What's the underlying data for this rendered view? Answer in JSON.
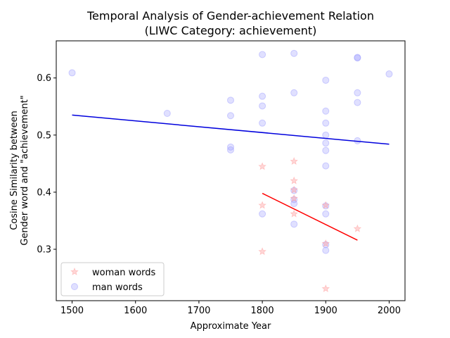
{
  "chart_data": {
    "type": "scatter",
    "title_line1": "Temporal Analysis of Gender-achievement Relation",
    "title_line2": "(LIWC Category: achievement)",
    "xlabel": "Approximate Year",
    "ylabel_line1": "Cosine Similarity between",
    "ylabel_line2": "Gender word and \"achievement\"",
    "xlim": [
      1475,
      2025
    ],
    "ylim": [
      0.21,
      0.665
    ],
    "xticks": [
      1500,
      1600,
      1700,
      1800,
      1900,
      2000
    ],
    "yticks": [
      0.3,
      0.4,
      0.5,
      0.6
    ],
    "grid": false,
    "legend_position": "lower-left",
    "series": [
      {
        "name": "woman words",
        "marker": "star",
        "color": "#ff9999",
        "points": [
          {
            "x": 1800,
            "y": 0.445
          },
          {
            "x": 1800,
            "y": 0.377
          },
          {
            "x": 1800,
            "y": 0.296
          },
          {
            "x": 1850,
            "y": 0.454
          },
          {
            "x": 1850,
            "y": 0.42
          },
          {
            "x": 1850,
            "y": 0.404
          },
          {
            "x": 1850,
            "y": 0.389
          },
          {
            "x": 1850,
            "y": 0.362
          },
          {
            "x": 1900,
            "y": 0.377
          },
          {
            "x": 1900,
            "y": 0.31
          },
          {
            "x": 1900,
            "y": 0.231
          },
          {
            "x": 1950,
            "y": 0.336
          }
        ],
        "trend": {
          "color": "#ff0000",
          "x": [
            1800,
            1950
          ],
          "y": [
            0.398,
            0.316
          ]
        }
      },
      {
        "name": "man words",
        "marker": "circle",
        "color": "#9999ff",
        "points": [
          {
            "x": 1500,
            "y": 0.609
          },
          {
            "x": 1650,
            "y": 0.538
          },
          {
            "x": 1750,
            "y": 0.561
          },
          {
            "x": 1750,
            "y": 0.534
          },
          {
            "x": 1750,
            "y": 0.479
          },
          {
            "x": 1750,
            "y": 0.474
          },
          {
            "x": 1800,
            "y": 0.641
          },
          {
            "x": 1800,
            "y": 0.568
          },
          {
            "x": 1800,
            "y": 0.551
          },
          {
            "x": 1800,
            "y": 0.521
          },
          {
            "x": 1800,
            "y": 0.362
          },
          {
            "x": 1850,
            "y": 0.643
          },
          {
            "x": 1850,
            "y": 0.574
          },
          {
            "x": 1850,
            "y": 0.403
          },
          {
            "x": 1850,
            "y": 0.387
          },
          {
            "x": 1850,
            "y": 0.38
          },
          {
            "x": 1850,
            "y": 0.344
          },
          {
            "x": 1900,
            "y": 0.596
          },
          {
            "x": 1900,
            "y": 0.542
          },
          {
            "x": 1900,
            "y": 0.521
          },
          {
            "x": 1900,
            "y": 0.5
          },
          {
            "x": 1900,
            "y": 0.486
          },
          {
            "x": 1900,
            "y": 0.473
          },
          {
            "x": 1900,
            "y": 0.446
          },
          {
            "x": 1900,
            "y": 0.376
          },
          {
            "x": 1900,
            "y": 0.362
          },
          {
            "x": 1900,
            "y": 0.308
          },
          {
            "x": 1900,
            "y": 0.298
          },
          {
            "x": 1950,
            "y": 0.636
          },
          {
            "x": 1950,
            "y": 0.635
          },
          {
            "x": 1950,
            "y": 0.574
          },
          {
            "x": 1950,
            "y": 0.557
          },
          {
            "x": 1950,
            "y": 0.49
          },
          {
            "x": 2000,
            "y": 0.607
          }
        ],
        "trend": {
          "color": "#0000dd",
          "x": [
            1500,
            2000
          ],
          "y": [
            0.535,
            0.484
          ]
        }
      }
    ]
  }
}
